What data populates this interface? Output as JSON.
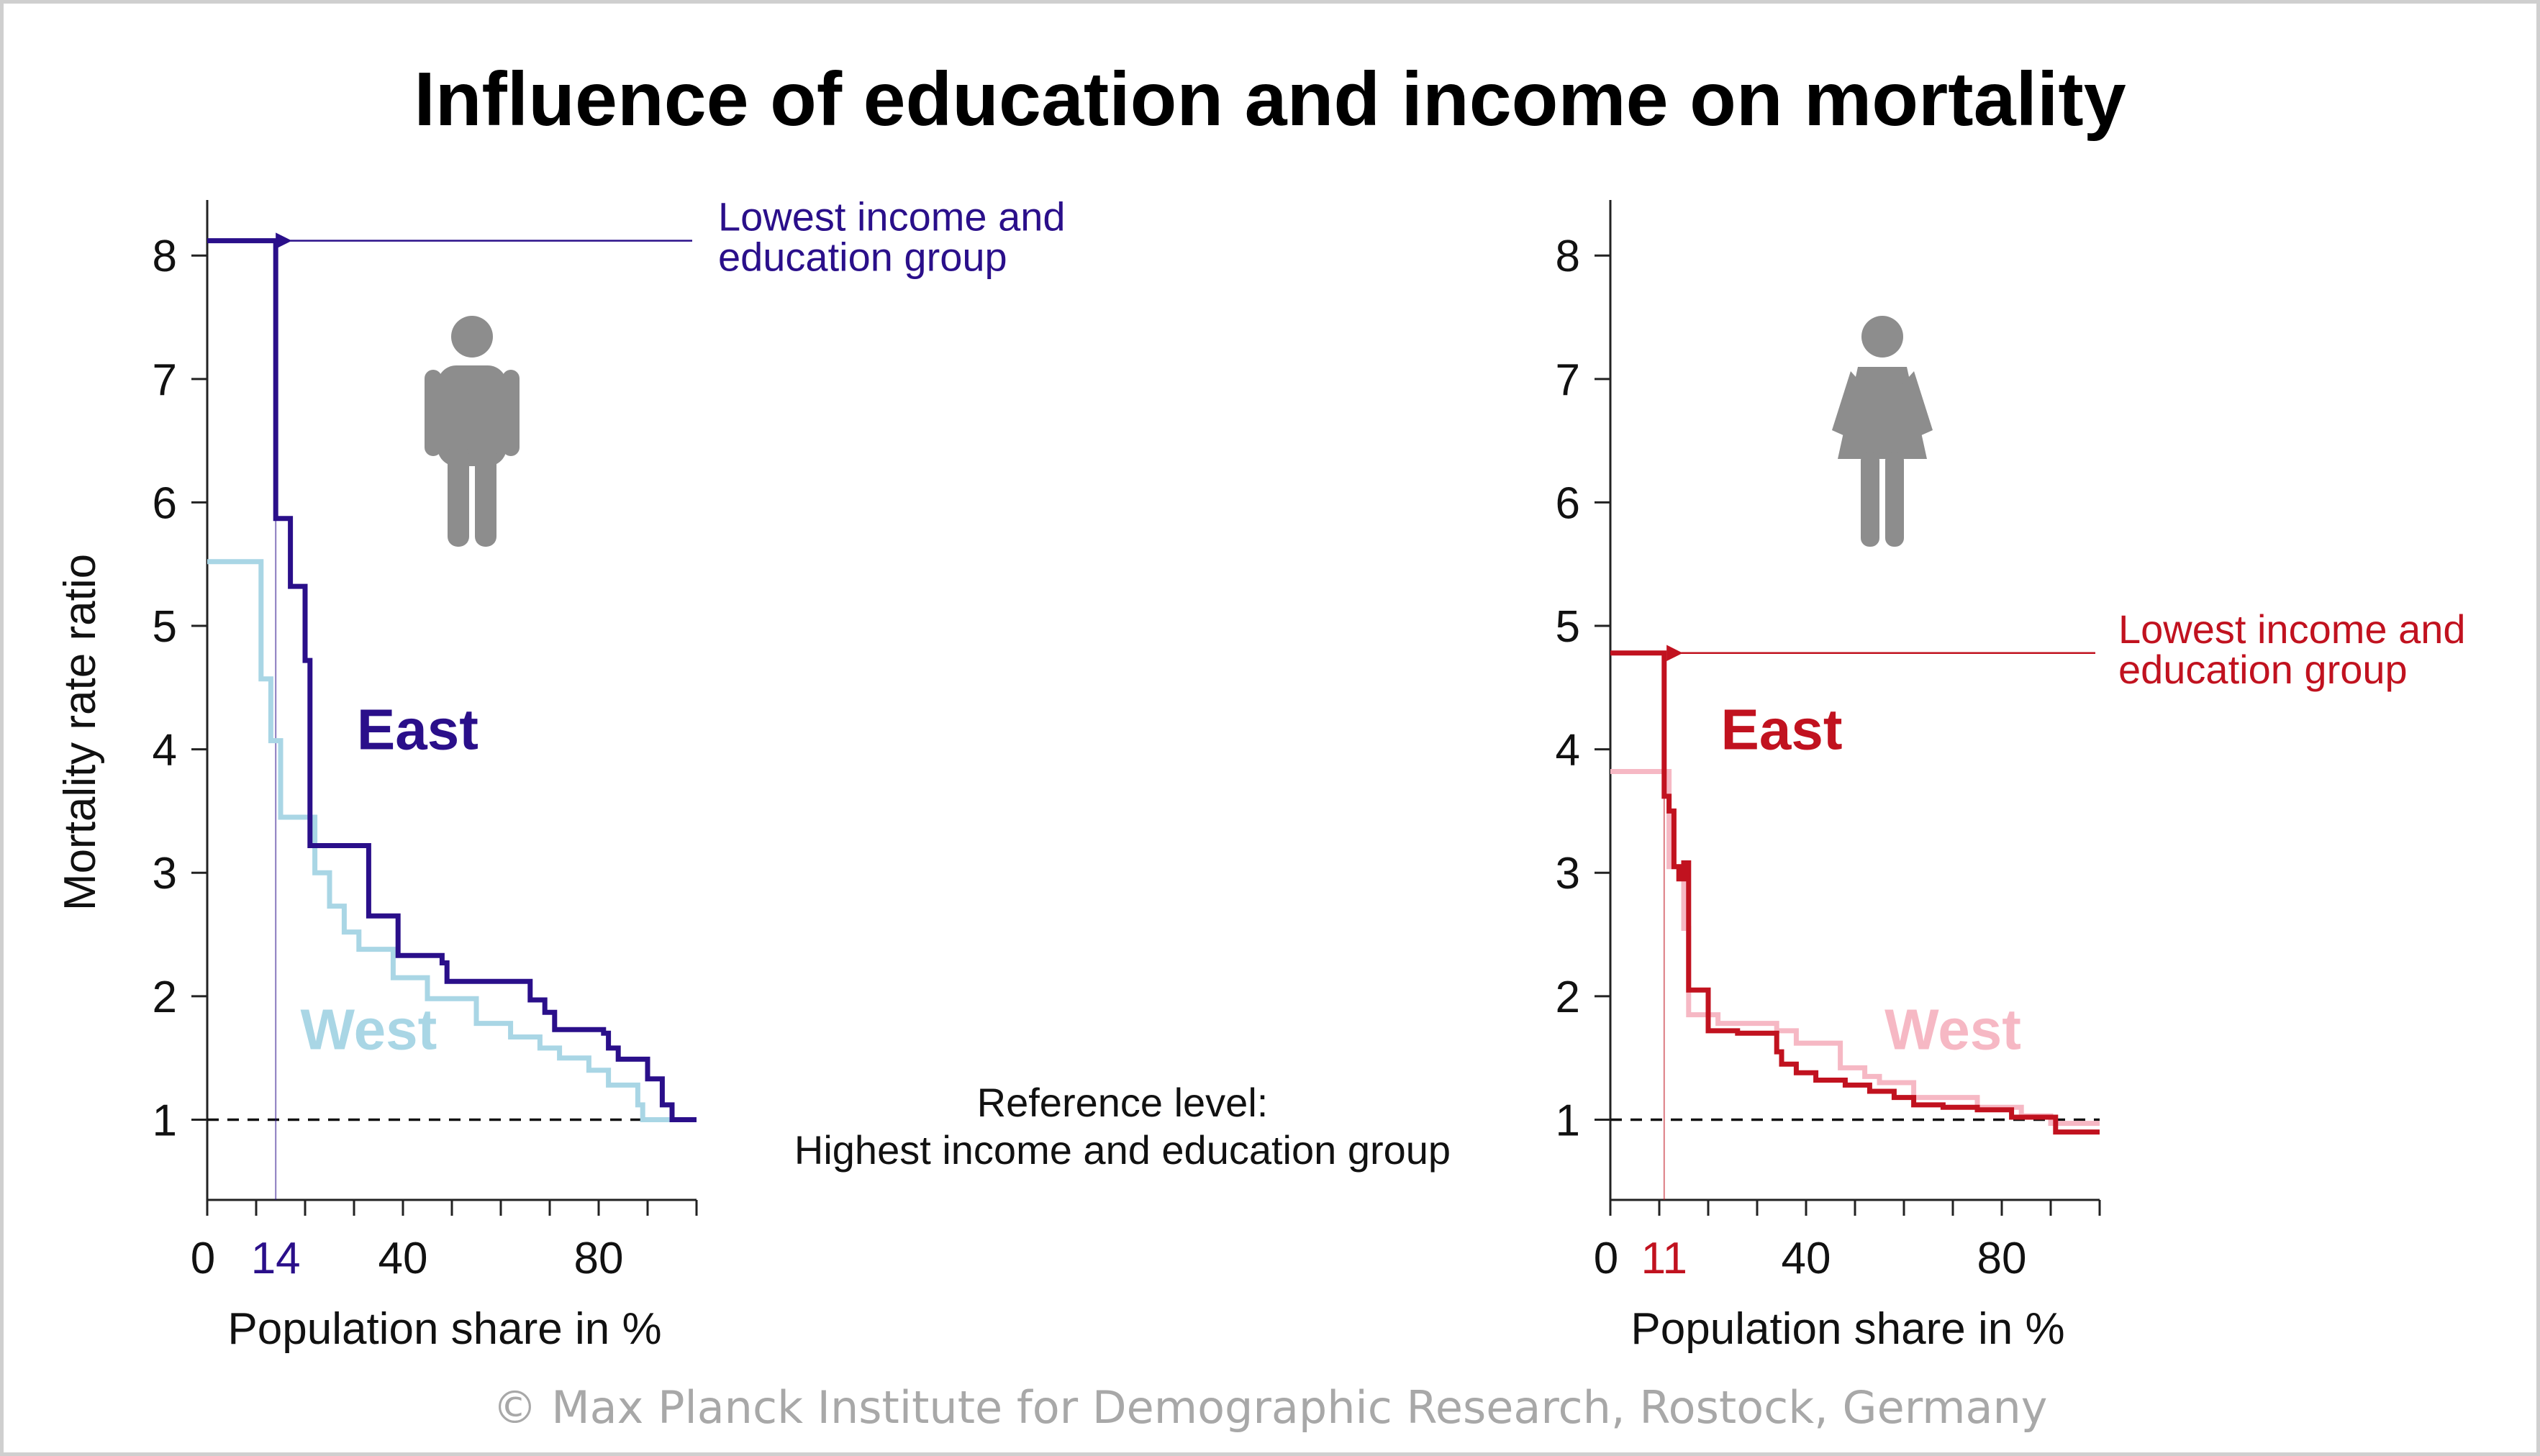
{
  "title": "Influence of education and income on mortality",
  "reference_note": [
    "Reference level:",
    "Highest income and education group"
  ],
  "copyright": "© Max Planck Institute for Demographic Research, Rostock, Germany",
  "colors": {
    "men_east": "#2a0f8a",
    "men_west": "#a9d6e5",
    "women_east": "#c1121f",
    "women_west": "#f6b8c4",
    "icon": "#8d8d8d",
    "reference": "#111111"
  },
  "chart_data": [
    {
      "type": "line",
      "panel": "men",
      "icon": "man-icon",
      "xlabel": "Population share in %",
      "ylabel": "Mortality rate ratio",
      "xlim": [
        0,
        100
      ],
      "ylim": [
        0.35,
        8.45
      ],
      "xticks": [
        0,
        40,
        80
      ],
      "yticks": [
        1,
        2,
        3,
        4,
        5,
        6,
        7,
        8
      ],
      "highlight_tick": "14",
      "marker_x": 14,
      "reference_y": 1,
      "annotation": [
        "Lowest income and",
        "education group"
      ],
      "annotation_point": [
        15.5,
        8.12
      ],
      "series": [
        {
          "name": "East",
          "color_key": "men_east",
          "points": [
            [
              0,
              8.12
            ],
            [
              14,
              8.12
            ],
            [
              14,
              5.87
            ],
            [
              17,
              5.87
            ],
            [
              17,
              5.32
            ],
            [
              20,
              5.32
            ],
            [
              20,
              4.72
            ],
            [
              21,
              4.72
            ],
            [
              21,
              3.22
            ],
            [
              33,
              3.22
            ],
            [
              33,
              2.65
            ],
            [
              39,
              2.65
            ],
            [
              39,
              2.33
            ],
            [
              48,
              2.33
            ],
            [
              48,
              2.27
            ],
            [
              49,
              2.27
            ],
            [
              49,
              2.12
            ],
            [
              66,
              2.12
            ],
            [
              66,
              1.97
            ],
            [
              69,
              1.97
            ],
            [
              69,
              1.87
            ],
            [
              71,
              1.87
            ],
            [
              71,
              1.73
            ],
            [
              81,
              1.73
            ],
            [
              81,
              1.7
            ],
            [
              82,
              1.7
            ],
            [
              82,
              1.58
            ],
            [
              84,
              1.58
            ],
            [
              84,
              1.49
            ],
            [
              90,
              1.49
            ],
            [
              90,
              1.33
            ],
            [
              93,
              1.33
            ],
            [
              93,
              1.12
            ],
            [
              95,
              1.12
            ],
            [
              95,
              1.0
            ],
            [
              100,
              1.0
            ]
          ],
          "label_at": [
            43,
            4.0
          ]
        },
        {
          "name": "West",
          "color_key": "men_west",
          "points": [
            [
              0,
              5.52
            ],
            [
              11,
              5.52
            ],
            [
              11,
              4.57
            ],
            [
              13,
              4.57
            ],
            [
              13,
              4.07
            ],
            [
              15,
              4.07
            ],
            [
              15,
              3.45
            ],
            [
              22,
              3.45
            ],
            [
              22,
              3.0
            ],
            [
              25,
              3.0
            ],
            [
              25,
              2.73
            ],
            [
              28,
              2.73
            ],
            [
              28,
              2.52
            ],
            [
              31,
              2.52
            ],
            [
              31,
              2.38
            ],
            [
              38,
              2.38
            ],
            [
              38,
              2.15
            ],
            [
              45,
              2.15
            ],
            [
              45,
              1.98
            ],
            [
              55,
              1.98
            ],
            [
              55,
              1.78
            ],
            [
              62,
              1.78
            ],
            [
              62,
              1.67
            ],
            [
              68,
              1.67
            ],
            [
              68,
              1.58
            ],
            [
              72,
              1.58
            ],
            [
              72,
              1.5
            ],
            [
              78,
              1.5
            ],
            [
              78,
              1.4
            ],
            [
              82,
              1.4
            ],
            [
              82,
              1.28
            ],
            [
              88,
              1.28
            ],
            [
              88,
              1.12
            ],
            [
              89,
              1.12
            ],
            [
              89,
              1.0
            ],
            [
              100,
              1.0
            ]
          ],
          "label_at": [
            33,
            1.57
          ]
        }
      ]
    },
    {
      "type": "line",
      "panel": "women",
      "icon": "woman-icon",
      "xlabel": "Population share in %",
      "ylabel": "",
      "xlim": [
        0,
        100
      ],
      "ylim": [
        0.35,
        8.45
      ],
      "xticks": [
        0,
        40,
        80
      ],
      "yticks": [
        1,
        2,
        3,
        4,
        5,
        6,
        7,
        8
      ],
      "highlight_tick": "11",
      "marker_x": 11,
      "reference_y": 1,
      "annotation": [
        "Lowest income and",
        "education group"
      ],
      "annotation_point": [
        13,
        4.78
      ],
      "series": [
        {
          "name": "East",
          "color_key": "women_east",
          "points": [
            [
              0,
              4.78
            ],
            [
              11,
              4.78
            ],
            [
              11,
              3.62
            ],
            [
              12,
              3.62
            ],
            [
              12,
              3.5
            ],
            [
              13,
              3.5
            ],
            [
              13,
              3.05
            ],
            [
              14,
              3.05
            ],
            [
              14,
              2.95
            ],
            [
              15,
              2.95
            ],
            [
              15,
              3.08
            ],
            [
              16,
              3.08
            ],
            [
              16,
              2.05
            ],
            [
              20,
              2.05
            ],
            [
              20,
              1.72
            ],
            [
              26,
              1.72
            ],
            [
              26,
              1.7
            ],
            [
              34,
              1.7
            ],
            [
              34,
              1.55
            ],
            [
              35,
              1.55
            ],
            [
              35,
              1.45
            ],
            [
              38,
              1.45
            ],
            [
              38,
              1.38
            ],
            [
              42,
              1.38
            ],
            [
              42,
              1.32
            ],
            [
              48,
              1.32
            ],
            [
              48,
              1.28
            ],
            [
              53,
              1.28
            ],
            [
              53,
              1.23
            ],
            [
              58,
              1.23
            ],
            [
              58,
              1.18
            ],
            [
              62,
              1.18
            ],
            [
              62,
              1.12
            ],
            [
              68,
              1.12
            ],
            [
              68,
              1.1
            ],
            [
              75,
              1.1
            ],
            [
              75,
              1.08
            ],
            [
              82,
              1.08
            ],
            [
              82,
              1.02
            ],
            [
              91,
              1.02
            ],
            [
              91,
              0.9
            ],
            [
              100,
              0.9
            ]
          ],
          "label_at": [
            35,
            4.0
          ]
        },
        {
          "name": "West",
          "color_key": "women_west",
          "points": [
            [
              0,
              3.82
            ],
            [
              12,
              3.82
            ],
            [
              12,
              3.05
            ],
            [
              15,
              3.05
            ],
            [
              15,
              2.55
            ],
            [
              16,
              2.55
            ],
            [
              16,
              1.85
            ],
            [
              22,
              1.85
            ],
            [
              22,
              1.78
            ],
            [
              34,
              1.78
            ],
            [
              34,
              1.72
            ],
            [
              38,
              1.72
            ],
            [
              38,
              1.62
            ],
            [
              47,
              1.62
            ],
            [
              47,
              1.42
            ],
            [
              52,
              1.42
            ],
            [
              52,
              1.35
            ],
            [
              55,
              1.35
            ],
            [
              55,
              1.3
            ],
            [
              62,
              1.3
            ],
            [
              62,
              1.18
            ],
            [
              75,
              1.18
            ],
            [
              75,
              1.1
            ],
            [
              84,
              1.1
            ],
            [
              84,
              1.03
            ],
            [
              90,
              1.03
            ],
            [
              90,
              0.97
            ],
            [
              100,
              0.97
            ]
          ],
          "label_at": [
            70,
            1.57
          ]
        }
      ]
    }
  ]
}
